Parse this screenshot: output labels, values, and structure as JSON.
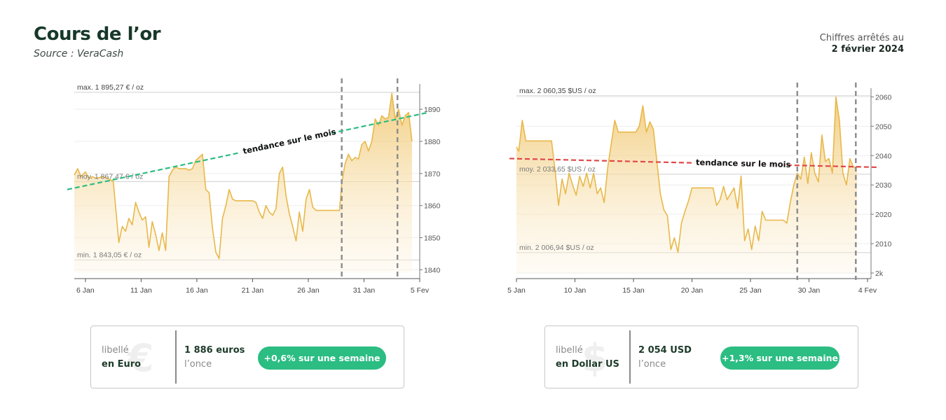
{
  "header": {
    "title": "Cours de l’or",
    "subtitle": "Source : VeraCash",
    "asof_label": "Chiffres arrêtés au",
    "asof_date": "2 février 2024"
  },
  "colors": {
    "line": "#e8b84a",
    "fill_top": "#f0c56a",
    "trend_up": "#2bbd82",
    "trend_down": "#e04848",
    "badge": "#2bbd82",
    "title": "#17382a"
  },
  "cards": [
    {
      "symbol": "€",
      "label1": "libellé",
      "label2": "en Euro",
      "value": "1 886 euros",
      "unit": "l’once",
      "change": "+0,6% sur une semaine"
    },
    {
      "symbol": "$",
      "label1": "libellé",
      "label2": "en Dollar US",
      "value": "2 054  USD",
      "unit": "l’once",
      "change": "+1,3% sur une semaine"
    }
  ],
  "chart_data": [
    {
      "type": "area",
      "currency": "EUR",
      "x_ticks": [
        "6 Jan",
        "11 Jan",
        "16 Jan",
        "21 Jan",
        "26 Jan",
        "31 Jan",
        "5 Fev"
      ],
      "y_ticks": [
        "1890",
        "1880",
        "1870",
        "1860",
        "1850",
        "1840"
      ],
      "ylim": [
        1839,
        1897
      ],
      "annotations": {
        "max": "max. 1 895,27 € / oz",
        "avg": "moy. 1 867,47 € / oz",
        "min": "min. 1 843,05 € / oz",
        "trend": "tendance sur le mois"
      },
      "reference_values": {
        "max": 1895.27,
        "avg": 1867.47,
        "min": 1843.05
      },
      "trend": {
        "direction": "up",
        "start": 1865,
        "end": 1889
      },
      "vertical_markers": [
        "29 Jan",
        "2 Fev"
      ],
      "x": [
        5,
        5.3,
        5.6,
        6,
        6.3,
        6.6,
        7,
        7.5,
        8,
        8.5,
        9,
        9.3,
        9.6,
        9.9,
        10.2,
        10.5,
        10.8,
        11.1,
        11.4,
        11.7,
        12,
        12.3,
        12.6,
        12.9,
        13.2,
        13.5,
        13.8,
        14.1,
        14.4,
        14.7,
        15,
        15.3,
        15.6,
        15.9,
        16.2,
        16.5,
        16.8,
        17.1,
        17.4,
        17.7,
        18,
        18.3,
        18.6,
        18.9,
        19.2,
        19.5,
        19.8,
        20.1,
        20.4,
        20.7,
        21,
        21.3,
        21.6,
        21.9,
        22.2,
        22.5,
        22.8,
        23.1,
        23.4,
        23.7,
        24,
        24.3,
        24.6,
        24.9,
        25.2,
        25.5,
        25.8,
        26.1,
        26.4,
        26.7,
        27,
        27.3,
        27.6,
        27.9,
        28.2,
        28.5,
        28.8,
        29,
        29.3,
        29.6,
        29.9,
        30.2,
        30.5,
        30.8,
        31.1,
        31.4,
        31.7,
        32,
        32.3,
        32.6,
        32.9,
        33.2,
        33.5,
        33.8,
        34.1,
        34.4,
        34.7,
        35,
        35.3
      ],
      "y": [
        1869.5,
        1871.5,
        1869,
        1870.5,
        1868.5,
        1869,
        1868.5,
        1869,
        1868.5,
        1867.5,
        1848.5,
        1853.5,
        1852,
        1856,
        1854,
        1861,
        1858,
        1855.5,
        1856.5,
        1847,
        1855,
        1851,
        1846,
        1851.5,
        1846,
        1869,
        1871,
        1872,
        1871.5,
        1871.5,
        1871.5,
        1871,
        1871.5,
        1874,
        1875,
        1876,
        1865,
        1864,
        1853,
        1845.5,
        1843.5,
        1856,
        1860,
        1865,
        1862,
        1861.5,
        1861.5,
        1861.5,
        1861.5,
        1861.5,
        1861.5,
        1861,
        1858,
        1856,
        1860,
        1858,
        1857,
        1859,
        1870,
        1872,
        1863,
        1857.5,
        1853.5,
        1849,
        1858,
        1852,
        1862,
        1865,
        1859.5,
        1858.5,
        1858.5,
        1858.5,
        1858.5,
        1858.5,
        1858.5,
        1858.5,
        1858.5,
        1867,
        1873,
        1876,
        1874,
        1875,
        1874.5,
        1879,
        1880,
        1877,
        1880,
        1887,
        1885,
        1888,
        1887,
        1887.5,
        1895,
        1887,
        1890,
        1885,
        1888,
        1889,
        1880
      ]
    },
    {
      "type": "area",
      "currency": "USD",
      "x_ticks": [
        "5 Jan",
        "10 Jan",
        "15 Jan",
        "20 Jan",
        "25 Jan",
        "30 Jan",
        "4 Fev"
      ],
      "y_ticks": [
        "2060",
        "2050",
        "2040",
        "2030",
        "2020",
        "2010",
        "2k"
      ],
      "ylim": [
        2000,
        2062
      ],
      "annotations": {
        "max": "max. 2 060,35 $US / oz",
        "avg": "moy. 2 033,65 $US / oz",
        "min": "min. 2 006,94 $US / oz",
        "trend": "tendance sur le mois"
      },
      "reference_values": {
        "max": 2060.35,
        "avg": 2033.65,
        "min": 2006.94
      },
      "trend": {
        "direction": "down",
        "start": 2039,
        "end": 2036
      },
      "vertical_markers": [
        "29 Jan",
        "3 Fev"
      ],
      "x": [
        5,
        5.2,
        5.5,
        5.8,
        6.2,
        6.6,
        7,
        7.5,
        8,
        8.3,
        8.6,
        8.9,
        9.2,
        9.5,
        9.8,
        10.1,
        10.4,
        10.7,
        11,
        11.3,
        11.6,
        11.9,
        12.2,
        12.5,
        12.8,
        13.1,
        13.4,
        13.7,
        14,
        14.3,
        14.6,
        14.9,
        15.2,
        15.5,
        15.8,
        16.1,
        16.4,
        16.7,
        17,
        17.3,
        17.6,
        17.9,
        18.2,
        18.5,
        18.8,
        19.1,
        19.4,
        19.7,
        20,
        20.3,
        20.6,
        20.9,
        21.2,
        21.5,
        21.8,
        22.1,
        22.4,
        22.7,
        23,
        23.3,
        23.6,
        23.9,
        24.2,
        24.5,
        24.8,
        25.1,
        25.4,
        25.7,
        26,
        26.3,
        26.6,
        26.9,
        27.2,
        27.5,
        27.8,
        28.1,
        28.4,
        28.7,
        29,
        29.3,
        29.6,
        29.9,
        30.2,
        30.5,
        30.8,
        31.1,
        31.4,
        31.7,
        32,
        32.3,
        32.6,
        32.9,
        33.2,
        33.5,
        33.8,
        34.1
      ],
      "y": [
        2043,
        2041.5,
        2052,
        2045,
        2045,
        2045,
        2045,
        2045,
        2045,
        2035,
        2023,
        2032,
        2027,
        2034,
        2030,
        2026.5,
        2033,
        2029.5,
        2034,
        2029,
        2034,
        2027,
        2029,
        2024,
        2036,
        2044,
        2052,
        2048,
        2048,
        2048,
        2048,
        2048,
        2048,
        2050,
        2057,
        2048,
        2051.5,
        2049,
        2038,
        2027,
        2021.5,
        2019.5,
        2008,
        2012,
        2007,
        2017,
        2021,
        2024.5,
        2029,
        2029,
        2029,
        2029,
        2029,
        2029,
        2029,
        2023,
        2025,
        2029.5,
        2025,
        2027,
        2029,
        2022,
        2033,
        2011,
        2015,
        2008,
        2016,
        2011,
        2021,
        2018,
        2018,
        2018,
        2018,
        2018,
        2018,
        2017,
        2024,
        2030,
        2034,
        2032,
        2039.5,
        2030.5,
        2041,
        2034,
        2031,
        2047,
        2038,
        2039,
        2034,
        2060,
        2052,
        2034,
        2030,
        2039,
        2036,
        2036
      ]
    }
  ]
}
